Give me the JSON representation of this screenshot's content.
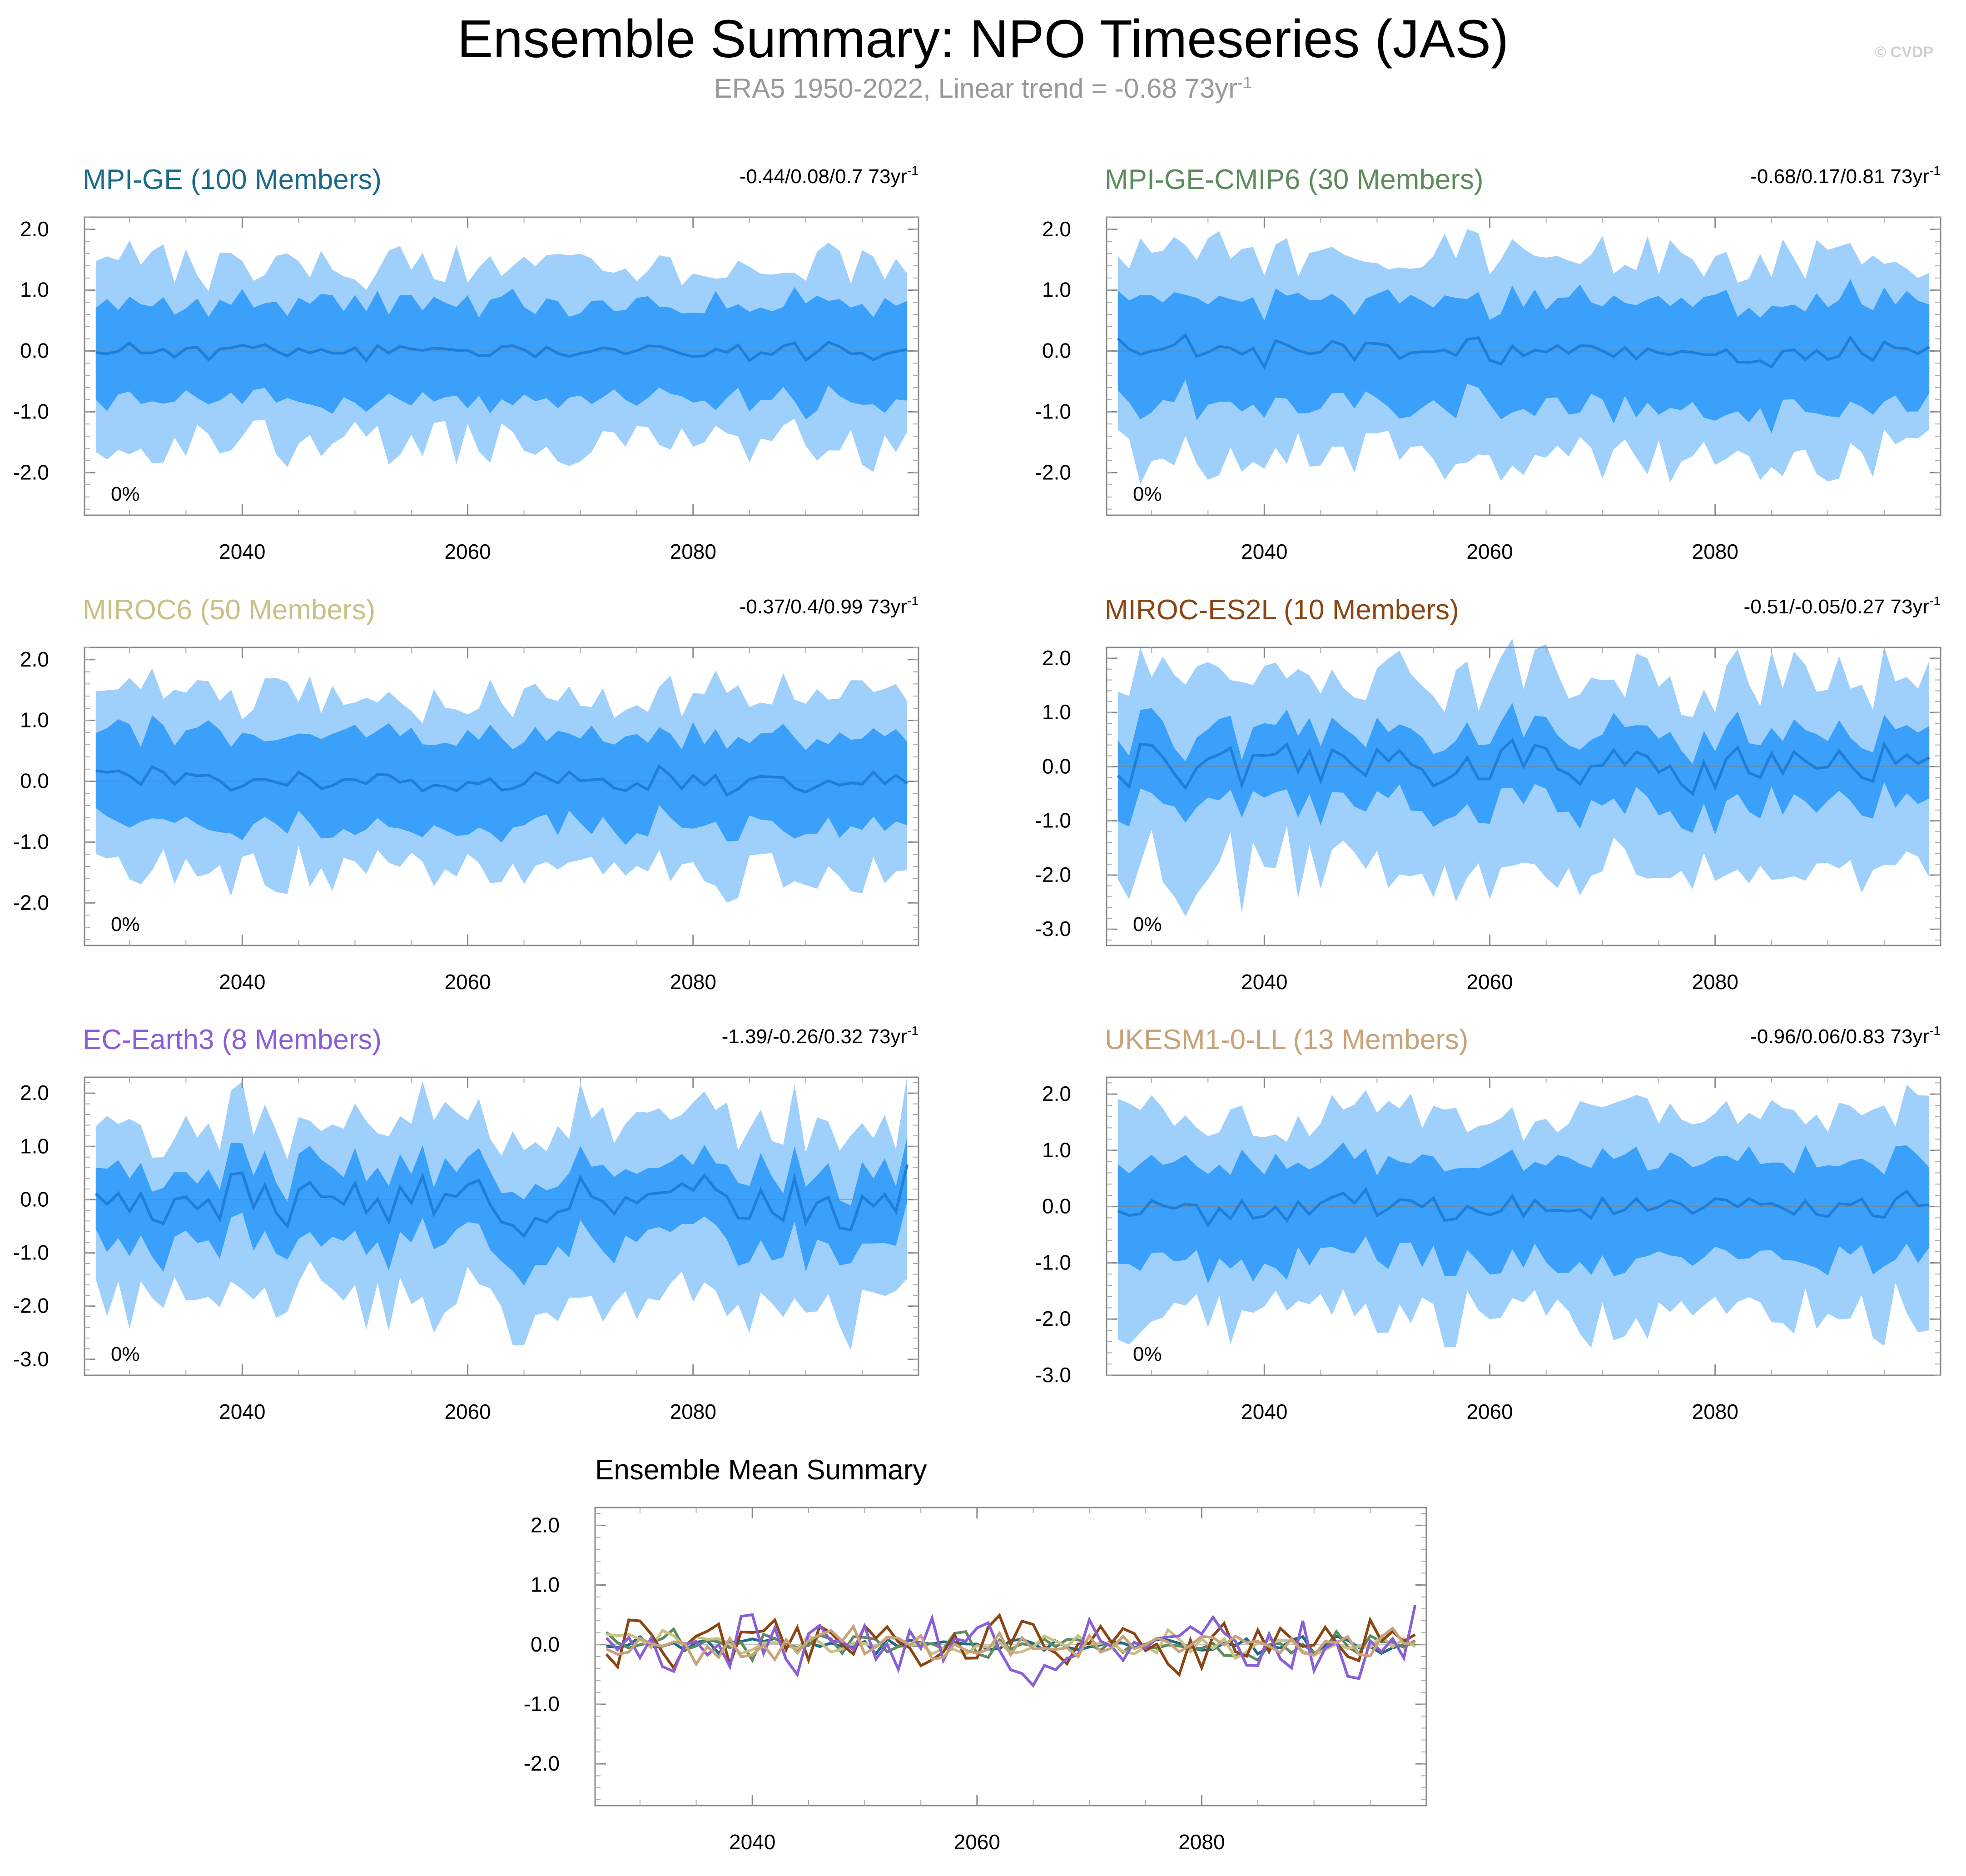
{
  "header": {
    "title": "Ensemble Summary: NPO Timeseries (JAS)",
    "subtitle_main": "ERA5 1950-2022, Linear trend = -0.68 73yr",
    "subtitle_exp": "-1",
    "copyright": "© CVDP"
  },
  "colors": {
    "band_outer": "#9fd0fb",
    "band_inner": "#3aa0fa",
    "mean_line": "#1f7fd8",
    "zero_line": "#7f7f7f"
  },
  "chart_data": [
    {
      "type": "area",
      "title": "MPI-GE (100 Members)",
      "title_color": "#1b6a8a",
      "trend_text": "-0.44/0.08/0.7 73yr",
      "trend_exp": "-1",
      "pct_label": "0%",
      "x_start": 2027,
      "x_end": 2099,
      "xlim": [
        2026,
        2100
      ],
      "ylim": [
        -2.7,
        2.2
      ],
      "yticks": [
        2.0,
        1.0,
        0.0,
        -1.0,
        -2.0
      ],
      "ytick_labels": [
        "2.0",
        "1.0",
        "0.0",
        "-1.0",
        "-2.0"
      ],
      "xticks": [
        2040,
        2060,
        2080
      ],
      "xtick_labels": [
        "2040",
        "2060",
        "2080"
      ],
      "seed": 11,
      "mean_amp": 0.12,
      "inner": 0.75,
      "outer": 1.35,
      "skew": -0.05
    },
    {
      "type": "area",
      "title": "MPI-GE-CMIP6 (30 Members)",
      "title_color": "#5e8b5e",
      "trend_text": "-0.68/0.17/0.81 73yr",
      "trend_exp": "-1",
      "pct_label": "0%",
      "x_start": 2027,
      "x_end": 2099,
      "xlim": [
        2026,
        2100
      ],
      "ylim": [
        -2.7,
        2.2
      ],
      "yticks": [
        2.0,
        1.0,
        0.0,
        -1.0,
        -2.0
      ],
      "ytick_labels": [
        "2.0",
        "1.0",
        "0.0",
        "-1.0",
        "-2.0"
      ],
      "xticks": [
        2040,
        2060,
        2080
      ],
      "xtick_labels": [
        "2040",
        "2060",
        "2080"
      ],
      "seed": 23,
      "mean_amp": 0.18,
      "inner": 0.8,
      "outer": 1.5,
      "skew": -0.1
    },
    {
      "type": "area",
      "title": "MIROC6 (50 Members)",
      "title_color": "#c9c184",
      "trend_text": "-0.37/0.4/0.99 73yr",
      "trend_exp": "-1",
      "pct_label": "0%",
      "x_start": 2027,
      "x_end": 2099,
      "xlim": [
        2026,
        2100
      ],
      "ylim": [
        -2.7,
        2.2
      ],
      "yticks": [
        2.0,
        1.0,
        0.0,
        -1.0,
        -2.0
      ],
      "ytick_labels": [
        "2.0",
        "1.0",
        "0.0",
        "-1.0",
        "-2.0"
      ],
      "xticks": [
        2040,
        2060,
        2080
      ],
      "xtick_labels": [
        "2040",
        "2060",
        "2080"
      ],
      "seed": 37,
      "mean_amp": 0.18,
      "inner": 0.7,
      "outer": 1.35,
      "skew": 0.0
    },
    {
      "type": "area",
      "title": "MIROC-ES2L (10 Members)",
      "title_color": "#8b4513",
      "trend_text": "-0.51/-0.05/0.27 73yr",
      "trend_exp": "-1",
      "pct_label": "0%",
      "x_start": 2027,
      "x_end": 2099,
      "xlim": [
        2026,
        2100
      ],
      "ylim": [
        -3.3,
        2.2
      ],
      "yticks": [
        2.0,
        1.0,
        0.0,
        -1.0,
        -2.0,
        -3.0
      ],
      "ytick_labels": [
        "2.0",
        "1.0",
        "0.0",
        "-1.0",
        "-2.0",
        "-3.0"
      ],
      "xticks": [
        2040,
        2060,
        2080
      ],
      "xtick_labels": [
        "2040",
        "2060",
        "2080"
      ],
      "seed": 51,
      "mean_amp": 0.4,
      "inner": 0.6,
      "outer": 1.5,
      "skew": -0.3
    },
    {
      "type": "area",
      "title": "EC-Earth3 (8 Members)",
      "title_color": "#8a5ed6",
      "trend_text": "-1.39/-0.26/0.32 73yr",
      "trend_exp": "-1",
      "pct_label": "0%",
      "x_start": 2027,
      "x_end": 2099,
      "xlim": [
        2026,
        2100
      ],
      "ylim": [
        -3.3,
        2.3
      ],
      "yticks": [
        2.0,
        1.0,
        0.0,
        -1.0,
        -2.0,
        -3.0
      ],
      "ytick_labels": [
        "2.0",
        "1.0",
        "0.0",
        "-1.0",
        "-2.0",
        "-3.0"
      ],
      "xticks": [
        2040,
        2060,
        2080
      ],
      "xtick_labels": [
        "2040",
        "2060",
        "2080"
      ],
      "seed": 67,
      "mean_amp": 0.45,
      "inner": 0.6,
      "outer": 1.4,
      "skew": -0.35
    },
    {
      "type": "area",
      "title": "UKESM1-0-LL (13 Members)",
      "title_color": "#c8a27a",
      "trend_text": "-0.96/0.06/0.83 73yr",
      "trend_exp": "-1",
      "pct_label": "0%",
      "x_start": 2027,
      "x_end": 2099,
      "xlim": [
        2026,
        2100
      ],
      "ylim": [
        -3.0,
        2.3
      ],
      "yticks": [
        2.0,
        1.0,
        0.0,
        -1.0,
        -2.0,
        -3.0
      ],
      "ytick_labels": [
        "2.0",
        "1.0",
        "0.0",
        "-1.0",
        "-2.0",
        "-3.0"
      ],
      "xticks": [
        2040,
        2060,
        2080
      ],
      "xtick_labels": [
        "2040",
        "2060",
        "2080"
      ],
      "seed": 83,
      "mean_amp": 0.25,
      "inner": 0.8,
      "outer": 1.6,
      "skew": -0.15
    },
    {
      "type": "line",
      "title": "Ensemble Mean Summary",
      "title_color": "#000000",
      "x_start": 2027,
      "x_end": 2099,
      "xlim": [
        2026,
        2100
      ],
      "ylim": [
        -2.7,
        2.3
      ],
      "yticks": [
        2.0,
        1.0,
        0.0,
        -1.0,
        -2.0
      ],
      "ytick_labels": [
        "2.0",
        "1.0",
        "0.0",
        "-1.0",
        "-2.0"
      ],
      "xticks": [
        2040,
        2060,
        2080
      ],
      "xtick_labels": [
        "2040",
        "2060",
        "2080"
      ],
      "series": [
        {
          "name": "MPI-GE",
          "color": "#1b6a8a",
          "seed": 11,
          "amp": 0.12
        },
        {
          "name": "MPI-GE-CMIP6",
          "color": "#5e8b5e",
          "seed": 23,
          "amp": 0.18
        },
        {
          "name": "MIROC6",
          "color": "#c9c184",
          "seed": 37,
          "amp": 0.18
        },
        {
          "name": "MIROC-ES2L",
          "color": "#8b4513",
          "seed": 51,
          "amp": 0.4
        },
        {
          "name": "EC-Earth3",
          "color": "#8a5ed6",
          "seed": 67,
          "amp": 0.45
        },
        {
          "name": "UKESM1-0-LL",
          "color": "#c8a27a",
          "seed": 83,
          "amp": 0.25
        }
      ]
    }
  ]
}
